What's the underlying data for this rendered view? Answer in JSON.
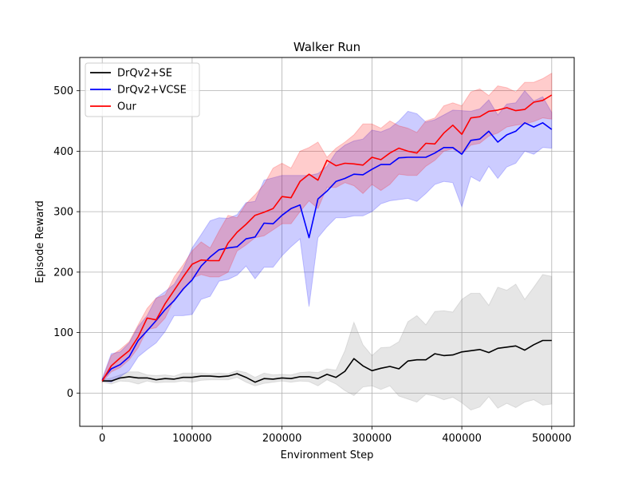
{
  "chart_data": {
    "type": "line",
    "title": "Walker Run",
    "xlabel": "Environment Step",
    "ylabel": "Episode Reward",
    "xlim": [
      -25000,
      525000
    ],
    "ylim": [
      -55,
      555
    ],
    "xticks": [
      0,
      100000,
      200000,
      300000,
      400000,
      500000
    ],
    "xtick_labels": [
      "0",
      "100000",
      "200000",
      "300000",
      "400000",
      "500000"
    ],
    "yticks": [
      0,
      100,
      200,
      300,
      400,
      500
    ],
    "ytick_labels": [
      "0",
      "100",
      "200",
      "300",
      "400",
      "500"
    ],
    "grid": true,
    "legend_position": "top-left",
    "x": [
      0,
      10000,
      20000,
      30000,
      40000,
      50000,
      60000,
      70000,
      80000,
      90000,
      100000,
      110000,
      120000,
      130000,
      140000,
      150000,
      160000,
      170000,
      180000,
      190000,
      200000,
      210000,
      220000,
      230000,
      240000,
      250000,
      260000,
      270000,
      280000,
      290000,
      300000,
      310000,
      320000,
      330000,
      340000,
      350000,
      360000,
      370000,
      380000,
      390000,
      400000,
      410000,
      420000,
      430000,
      440000,
      450000,
      460000,
      470000,
      480000,
      490000,
      500000
    ],
    "series": [
      {
        "name": "DrQv2+SE",
        "color": "#000000",
        "band_color": "#808080",
        "mean": [
          20,
          20,
          25,
          27,
          25,
          25,
          22,
          24,
          23,
          26,
          26,
          28,
          28,
          27,
          28,
          32,
          26,
          18,
          24,
          23,
          25,
          24,
          27,
          27,
          24,
          31,
          26,
          36,
          57,
          45,
          37,
          41,
          44,
          40,
          53,
          55,
          55,
          65,
          62,
          63,
          68,
          70,
          72,
          67,
          74,
          76,
          78,
          71,
          80,
          87,
          87
        ],
        "upper": [
          22,
          25,
          30,
          35,
          35,
          30,
          29,
          30,
          28,
          33,
          33,
          33,
          32,
          33,
          32,
          37,
          34,
          26,
          33,
          30,
          31,
          30,
          34,
          35,
          34,
          40,
          38,
          70,
          117,
          80,
          62,
          75,
          76,
          85,
          118,
          128,
          113,
          135,
          136,
          134,
          155,
          165,
          165,
          145,
          175,
          170,
          180,
          155,
          175,
          196,
          193
        ],
        "lower": [
          18,
          15,
          20,
          19,
          15,
          20,
          17,
          18,
          18,
          20,
          18,
          21,
          22,
          22,
          22,
          26,
          18,
          12,
          16,
          18,
          20,
          18,
          20,
          19,
          12,
          22,
          15,
          4,
          -4,
          10,
          12,
          6,
          12,
          -5,
          -10,
          -15,
          -2,
          -5,
          -11,
          -7,
          -16,
          -28,
          -23,
          -6,
          -25,
          -17,
          -24,
          -15,
          -11,
          -20,
          -18
        ]
      },
      {
        "name": "DrQv2+VCSE",
        "color": "#0000ff",
        "band_color": "#0000ff",
        "mean": [
          22,
          40,
          47,
          60,
          87,
          103,
          120,
          138,
          153,
          172,
          187,
          210,
          225,
          237,
          240,
          242,
          255,
          258,
          281,
          280,
          294,
          305,
          311,
          257,
          321,
          334,
          350,
          355,
          362,
          361,
          370,
          378,
          378,
          389,
          390,
          390,
          390,
          397,
          406,
          406,
          395,
          418,
          420,
          433,
          415,
          427,
          433,
          447,
          440,
          447,
          436
        ],
        "upper": [
          24,
          65,
          68,
          83,
          110,
          128,
          157,
          168,
          180,
          205,
          240,
          262,
          285,
          290,
          289,
          295,
          315,
          317,
          352,
          356,
          360,
          360,
          360,
          360,
          363,
          375,
          398,
          410,
          417,
          420,
          435,
          432,
          438,
          450,
          466,
          462,
          448,
          452,
          460,
          468,
          467,
          466,
          470,
          485,
          460,
          478,
          480,
          500,
          483,
          490,
          464
        ],
        "lower": [
          20,
          18,
          27,
          37,
          60,
          72,
          83,
          102,
          128,
          128,
          130,
          155,
          160,
          185,
          188,
          195,
          210,
          189,
          208,
          208,
          227,
          242,
          255,
          143,
          257,
          275,
          290,
          290,
          293,
          293,
          300,
          313,
          318,
          320,
          322,
          317,
          330,
          345,
          350,
          348,
          308,
          358,
          350,
          375,
          355,
          374,
          380,
          400,
          395,
          406,
          405
        ]
      },
      {
        "name": "Our",
        "color": "#ff0000",
        "band_color": "#ff0000",
        "mean": [
          20,
          45,
          58,
          70,
          93,
          124,
          121,
          148,
          170,
          192,
          213,
          220,
          219,
          219,
          248,
          266,
          279,
          294,
          299,
          305,
          325,
          323,
          350,
          362,
          352,
          385,
          376,
          380,
          379,
          377,
          390,
          386,
          397,
          405,
          400,
          397,
          413,
          412,
          430,
          443,
          428,
          455,
          457,
          466,
          468,
          472,
          467,
          469,
          481,
          484,
          493
        ],
        "upper": [
          22,
          62,
          72,
          85,
          113,
          140,
          157,
          162,
          192,
          212,
          235,
          250,
          240,
          268,
          294,
          290,
          313,
          328,
          345,
          372,
          380,
          372,
          400,
          406,
          415,
          390,
          405,
          415,
          427,
          445,
          445,
          438,
          450,
          442,
          438,
          431,
          450,
          455,
          475,
          480,
          475,
          498,
          503,
          492,
          508,
          505,
          498,
          514,
          514,
          520,
          529
        ],
        "lower": [
          18,
          35,
          42,
          55,
          75,
          105,
          108,
          124,
          155,
          170,
          190,
          196,
          192,
          192,
          200,
          235,
          245,
          257,
          260,
          270,
          280,
          280,
          300,
          318,
          305,
          340,
          340,
          348,
          343,
          330,
          345,
          335,
          345,
          362,
          360,
          360,
          375,
          385,
          400,
          404,
          395,
          410,
          413,
          425,
          430,
          440,
          443,
          445,
          449,
          455,
          453
        ]
      }
    ]
  }
}
